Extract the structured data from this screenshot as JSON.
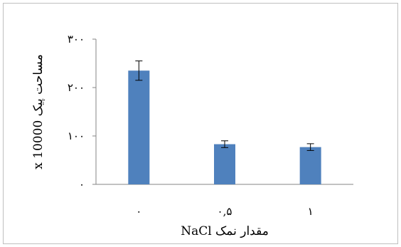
{
  "chart_data": {
    "type": "bar",
    "categories": [
      "۰",
      "۰,۵",
      "۱"
    ],
    "values": [
      235,
      83,
      77
    ],
    "errors": [
      20,
      7,
      7
    ],
    "ylim": [
      0,
      300
    ],
    "yticks": [
      0,
      100,
      200,
      300
    ],
    "ytick_labels": [
      "۰",
      "۱۰۰",
      "۲۰۰",
      "۳۰۰"
    ],
    "xlabel": "مقدار نمک NaCl",
    "ylabel": "مساحت پیک x 10000",
    "title": "",
    "grid": false,
    "legend": "none",
    "bar_color": "#4f81bd",
    "axis_color": "#868686"
  }
}
